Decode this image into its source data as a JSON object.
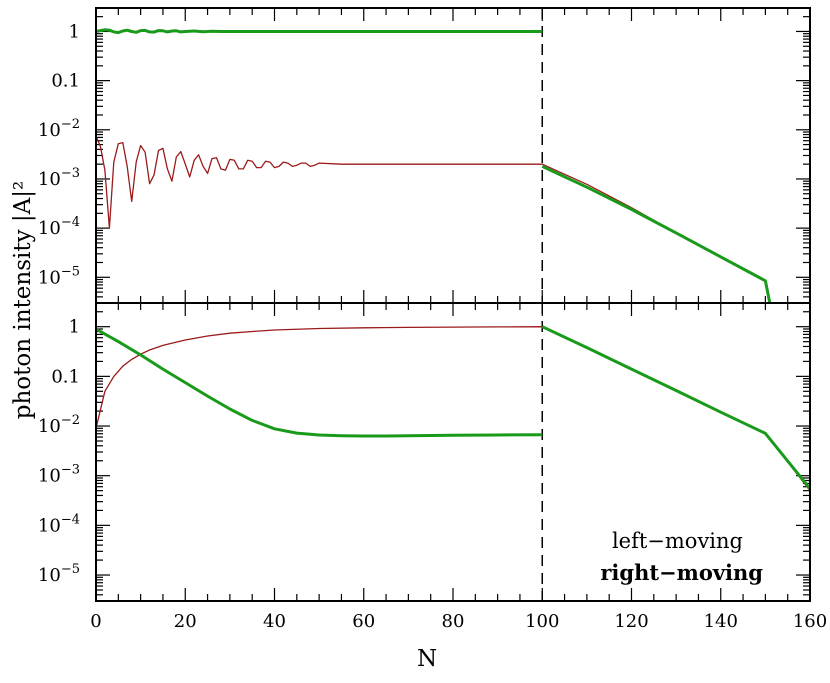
{
  "chart_data": [
    {
      "panel": "top",
      "type": "line",
      "y_scale": "log",
      "ylim": [
        3e-06,
        3
      ],
      "xlim": [
        0,
        160
      ],
      "ylabel": "photon intensity |A|²",
      "ytick_labels": [
        {
          "value": 1,
          "label": "1",
          "sup": ""
        },
        {
          "value": 0.1,
          "label": "0.1",
          "sup": ""
        },
        {
          "value": 0.01,
          "label": "10",
          "sup": "−2"
        },
        {
          "value": 0.001,
          "label": "10",
          "sup": "−3"
        },
        {
          "value": 0.0001,
          "label": "10",
          "sup": "−4"
        },
        {
          "value": 1e-05,
          "label": "10",
          "sup": "−5"
        }
      ],
      "vline_x": 100,
      "series": [
        {
          "name": "left−moving",
          "color": "#9b1b1b",
          "points": [
            [
              0,
              0.0075
            ],
            [
              1,
              0.0045
            ],
            [
              2,
              0.0015
            ],
            [
              3,
              0.0001
            ],
            [
              4,
              0.0022
            ],
            [
              5,
              0.0052
            ],
            [
              6,
              0.0055
            ],
            [
              7,
              0.0018
            ],
            [
              8,
              0.00035
            ],
            [
              9,
              0.0022
            ],
            [
              10,
              0.0048
            ],
            [
              11,
              0.0035
            ],
            [
              12,
              0.0008
            ],
            [
              13,
              0.0012
            ],
            [
              14,
              0.0038
            ],
            [
              15,
              0.0042
            ],
            [
              16,
              0.0016
            ],
            [
              17,
              0.0009
            ],
            [
              18,
              0.0028
            ],
            [
              19,
              0.0036
            ],
            [
              20,
              0.002
            ],
            [
              21,
              0.0011
            ],
            [
              22,
              0.0024
            ],
            [
              23,
              0.0031
            ],
            [
              24,
              0.0018
            ],
            [
              25,
              0.0013
            ],
            [
              26,
              0.0026
            ],
            [
              27,
              0.0027
            ],
            [
              28,
              0.0016
            ],
            [
              29,
              0.0015
            ],
            [
              30,
              0.0025
            ],
            [
              31,
              0.0024
            ],
            [
              32,
              0.0016
            ],
            [
              33,
              0.0016
            ],
            [
              34,
              0.0024
            ],
            [
              35,
              0.0023
            ],
            [
              36,
              0.0017
            ],
            [
              37,
              0.0017
            ],
            [
              38,
              0.0023
            ],
            [
              39,
              0.0022
            ],
            [
              40,
              0.0017
            ],
            [
              41,
              0.0018
            ],
            [
              42,
              0.0022
            ],
            [
              43,
              0.0021
            ],
            [
              44,
              0.0018
            ],
            [
              45,
              0.0019
            ],
            [
              46,
              0.0021
            ],
            [
              47,
              0.0021
            ],
            [
              48,
              0.0018
            ],
            [
              49,
              0.0019
            ],
            [
              50,
              0.0021
            ],
            [
              55,
              0.002
            ],
            [
              60,
              0.002
            ],
            [
              65,
              0.002
            ],
            [
              70,
              0.002
            ],
            [
              80,
              0.002
            ],
            [
              90,
              0.002
            ],
            [
              100,
              0.002
            ],
            [
              110,
              0.00078
            ],
            [
              120,
              0.00026
            ],
            [
              130,
              8e-05
            ],
            [
              140,
              2.6e-05
            ],
            [
              150,
              8.5e-06
            ],
            [
              151,
              3e-06
            ]
          ]
        },
        {
          "name": "right−moving",
          "color": "#1a9a1a",
          "points": [
            [
              0,
              1.0
            ],
            [
              1,
              1.04
            ],
            [
              2,
              1.08
            ],
            [
              3,
              1.06
            ],
            [
              4,
              0.98
            ],
            [
              5,
              0.95
            ],
            [
              6,
              1.02
            ],
            [
              7,
              1.06
            ],
            [
              8,
              1.0
            ],
            [
              9,
              0.96
            ],
            [
              10,
              1.04
            ],
            [
              11,
              1.05
            ],
            [
              12,
              0.98
            ],
            [
              13,
              0.97
            ],
            [
              14,
              1.04
            ],
            [
              15,
              1.03
            ],
            [
              16,
              0.98
            ],
            [
              17,
              1.02
            ],
            [
              18,
              1.03
            ],
            [
              19,
              0.98
            ],
            [
              20,
              1.0
            ],
            [
              22,
              1.02
            ],
            [
              24,
              0.99
            ],
            [
              26,
              1.01
            ],
            [
              28,
              1.0
            ],
            [
              30,
              1.0
            ],
            [
              40,
              1.0
            ],
            [
              60,
              1.0
            ],
            [
              80,
              1.0
            ],
            [
              100,
              1.0
            ]
          ]
        },
        {
          "name": "right−moving",
          "color": "#1a9a1a",
          "points": [
            [
              100,
              0.0018
            ],
            [
              110,
              0.00068
            ],
            [
              120,
              0.00024
            ],
            [
              130,
              8e-05
            ],
            [
              140,
              2.6e-05
            ],
            [
              150,
              8.5e-06
            ],
            [
              151,
              3e-06
            ]
          ]
        }
      ]
    },
    {
      "panel": "bottom",
      "type": "line",
      "y_scale": "log",
      "ylim": [
        3e-06,
        3
      ],
      "xlim": [
        0,
        160
      ],
      "xlabel": "N",
      "xticks": [
        0,
        20,
        40,
        60,
        80,
        100,
        120,
        140,
        160
      ],
      "ytick_labels": [
        {
          "value": 1,
          "label": "1",
          "sup": ""
        },
        {
          "value": 0.1,
          "label": "0.1",
          "sup": ""
        },
        {
          "value": 0.01,
          "label": "10",
          "sup": "−2"
        },
        {
          "value": 0.001,
          "label": "10",
          "sup": "−3"
        },
        {
          "value": 0.0001,
          "label": "10",
          "sup": "−4"
        },
        {
          "value": 1e-05,
          "label": "10",
          "sup": "−5"
        }
      ],
      "vline_x": 100,
      "series": [
        {
          "name": "left−moving",
          "color": "#9b1b1b",
          "points": [
            [
              0,
              0.009
            ],
            [
              2,
              0.05
            ],
            [
              4,
              0.1
            ],
            [
              6,
              0.16
            ],
            [
              8,
              0.22
            ],
            [
              10,
              0.28
            ],
            [
              12,
              0.34
            ],
            [
              15,
              0.42
            ],
            [
              20,
              0.54
            ],
            [
              25,
              0.65
            ],
            [
              30,
              0.74
            ],
            [
              35,
              0.8
            ],
            [
              40,
              0.86
            ],
            [
              50,
              0.92
            ],
            [
              60,
              0.95
            ],
            [
              70,
              0.97
            ],
            [
              80,
              0.98
            ],
            [
              90,
              0.99
            ],
            [
              100,
              1.0
            ],
            [
              110,
              0.38
            ],
            [
              120,
              0.14
            ],
            [
              130,
              0.052
            ],
            [
              140,
              0.019
            ],
            [
              150,
              0.0071
            ],
            [
              160,
              0.0005
            ]
          ]
        },
        {
          "name": "right−moving",
          "color": "#1a9a1a",
          "points": [
            [
              0,
              0.9
            ],
            [
              5,
              0.5
            ],
            [
              10,
              0.27
            ],
            [
              15,
              0.14
            ],
            [
              20,
              0.075
            ],
            [
              25,
              0.04
            ],
            [
              30,
              0.022
            ],
            [
              35,
              0.013
            ],
            [
              40,
              0.0088
            ],
            [
              45,
              0.0072
            ],
            [
              50,
              0.0066
            ],
            [
              55,
              0.0064
            ],
            [
              60,
              0.0063
            ],
            [
              65,
              0.0063
            ],
            [
              70,
              0.0064
            ],
            [
              80,
              0.0065
            ],
            [
              90,
              0.0066
            ],
            [
              100,
              0.0067
            ]
          ]
        },
        {
          "name": "right−moving",
          "color": "#1a9a1a",
          "points": [
            [
              100,
              1.0
            ],
            [
              110,
              0.38
            ],
            [
              120,
              0.14
            ],
            [
              130,
              0.052
            ],
            [
              140,
              0.019
            ],
            [
              150,
              0.0071
            ],
            [
              160,
              0.00055
            ]
          ]
        }
      ]
    }
  ],
  "legend": {
    "placement": "bottom-right",
    "items": [
      {
        "label": "left−moving",
        "color": "#9b1b1b",
        "bold": false
      },
      {
        "label": "right−moving",
        "color": "#1a9a1a",
        "bold": true
      }
    ]
  },
  "axis_titles": {
    "y": "photon intensity |A|²",
    "x": "N"
  }
}
